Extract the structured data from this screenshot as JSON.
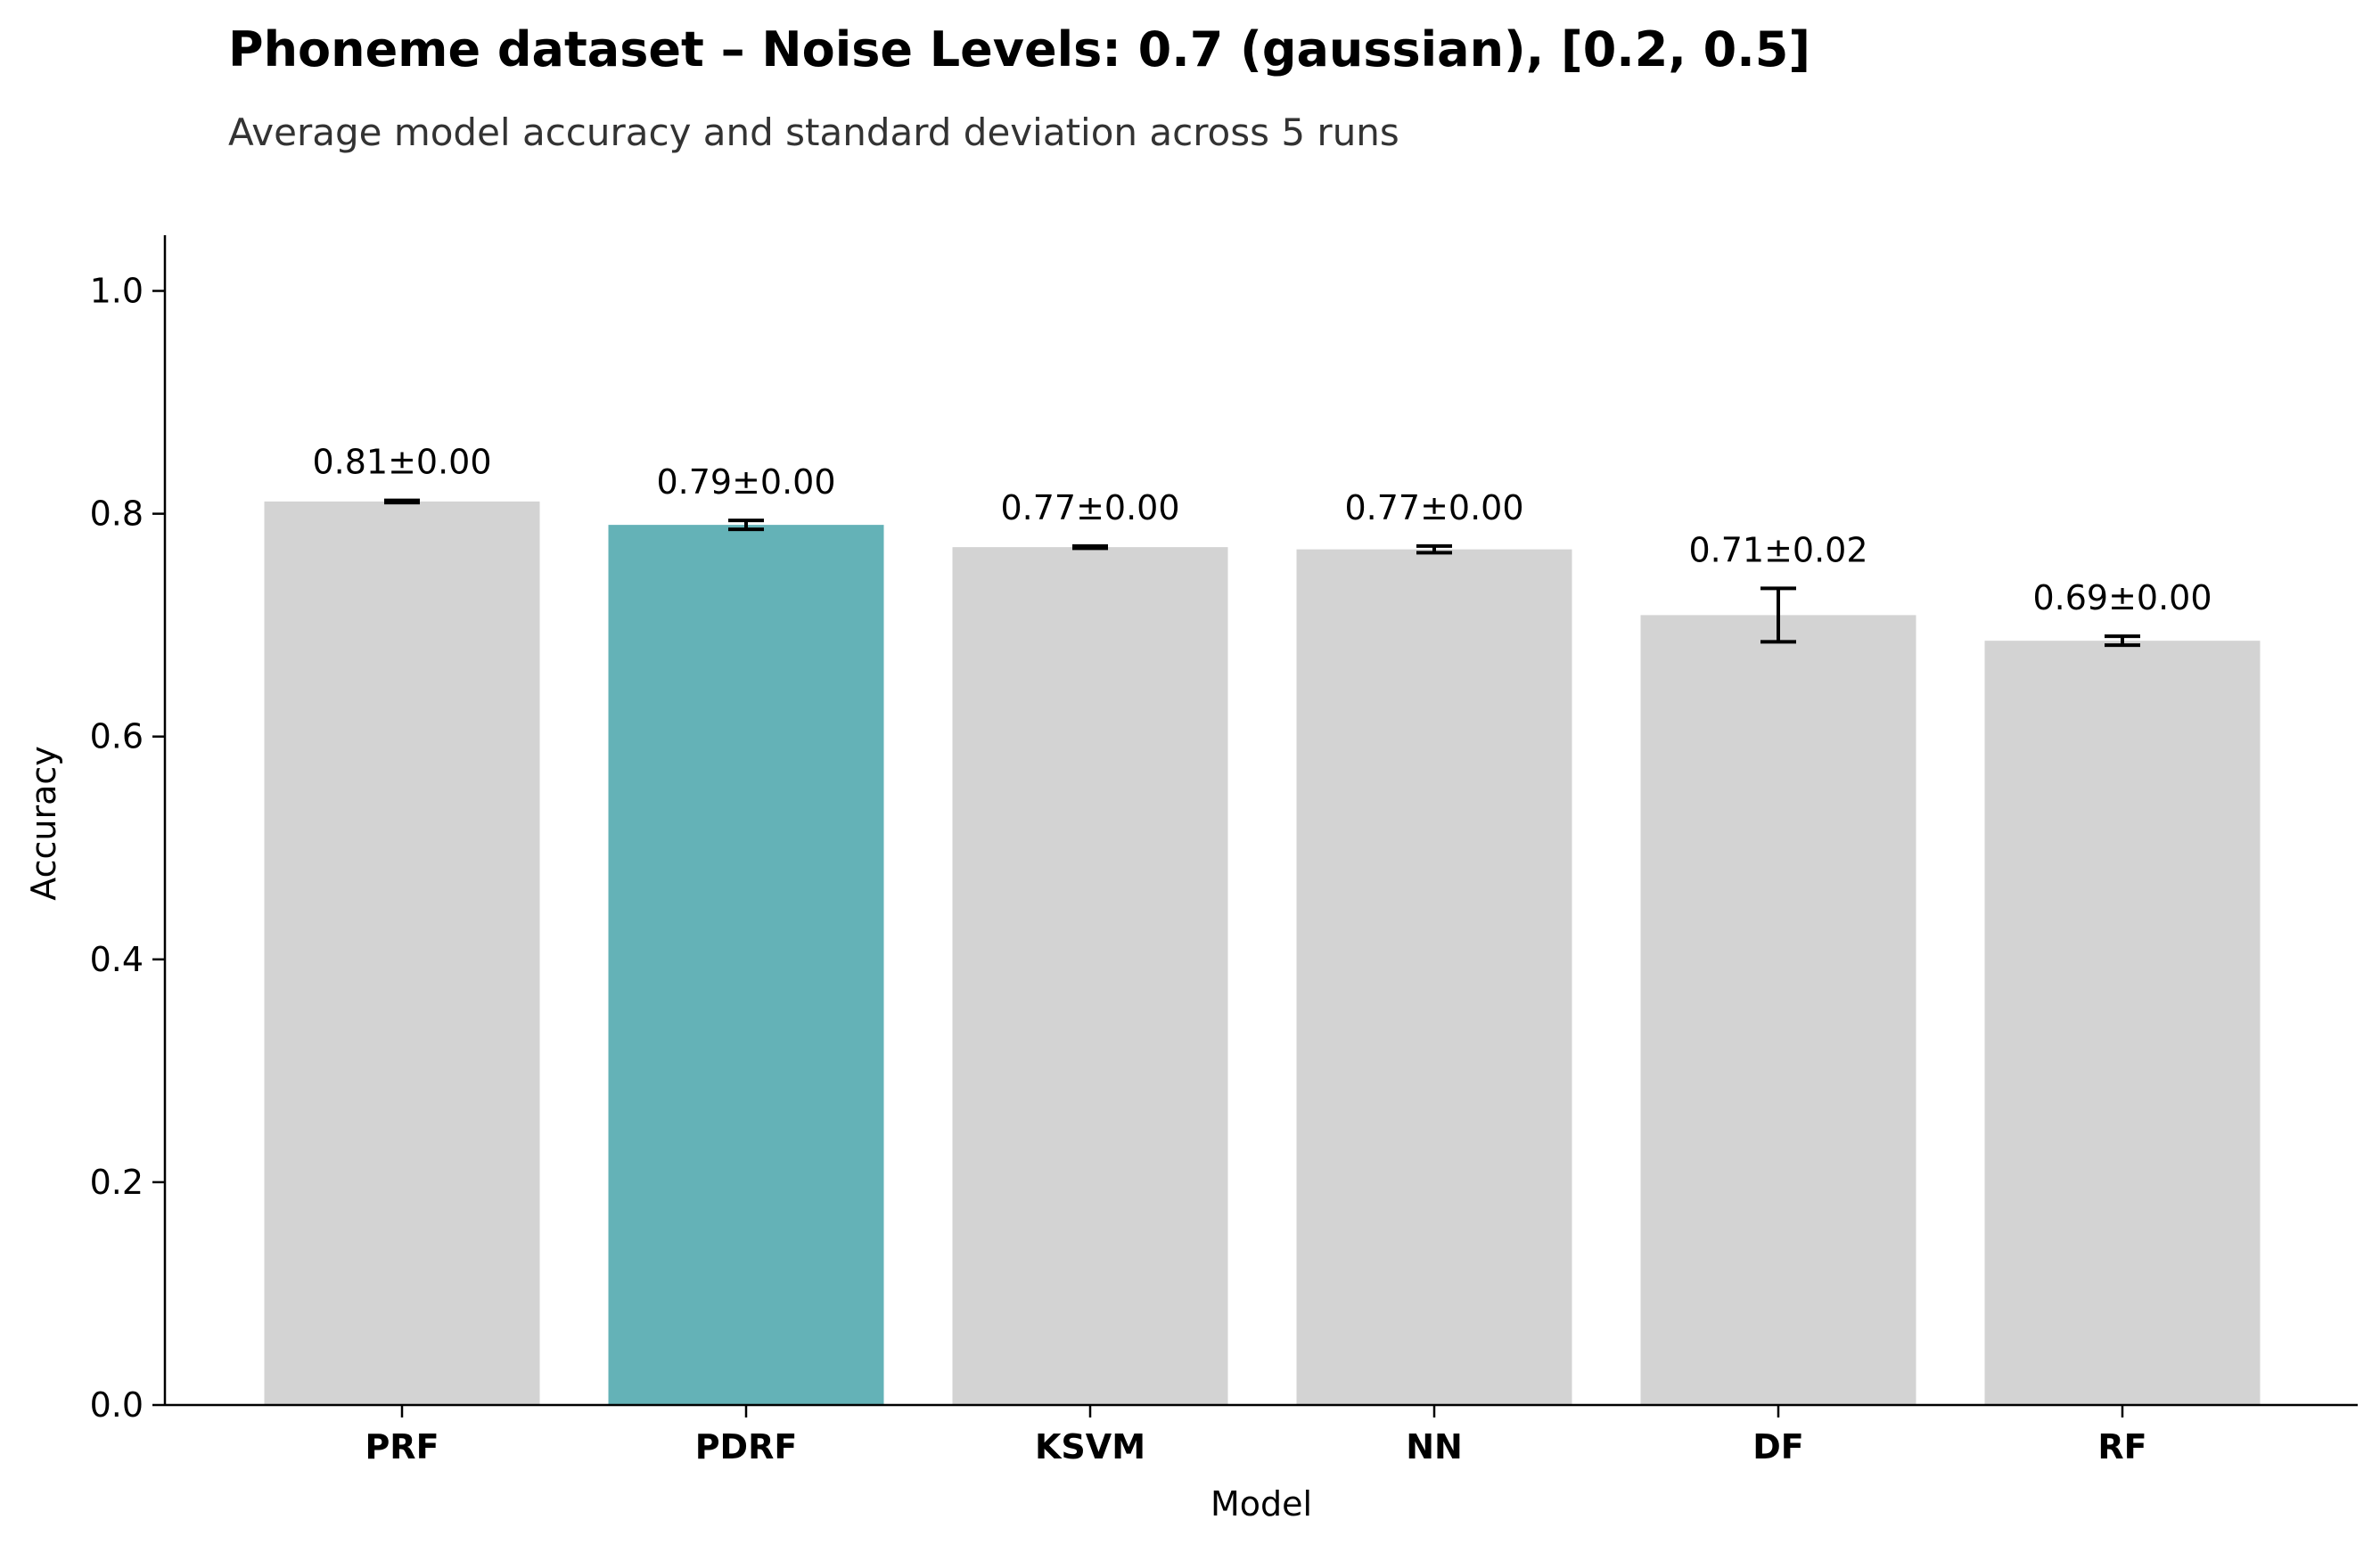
{
  "chart_data": {
    "type": "bar",
    "title": "Phoneme dataset – Noise Levels: 0.7 (gaussian), [0.2, 0.5]",
    "subtitle": "Average model accuracy and standard deviation across 5 runs",
    "xlabel": "Model",
    "ylabel": "Accuracy",
    "ylim": [
      0,
      1.05
    ],
    "yticks": [
      0.0,
      0.2,
      0.4,
      0.6,
      0.8,
      1.0
    ],
    "ytick_labels": [
      "0.0",
      "0.2",
      "0.4",
      "0.6",
      "0.8",
      "1.0"
    ],
    "categories": [
      "PRF",
      "PDRF",
      "KSVM",
      "NN",
      "DF",
      "RF"
    ],
    "values": [
      0.811,
      0.79,
      0.77,
      0.768,
      0.709,
      0.686
    ],
    "errors": [
      0.001,
      0.004,
      0.001,
      0.003,
      0.024,
      0.004
    ],
    "data_labels": [
      "0.81±0.00",
      "0.79±0.00",
      "0.77±0.00",
      "0.77±0.00",
      "0.71±0.02",
      "0.69±0.00"
    ],
    "bar_colors": [
      "#d3d3d3",
      "#64b2b7",
      "#d3d3d3",
      "#d3d3d3",
      "#d3d3d3",
      "#d3d3d3"
    ],
    "highlighted_category": "PDRF",
    "grid": false
  }
}
